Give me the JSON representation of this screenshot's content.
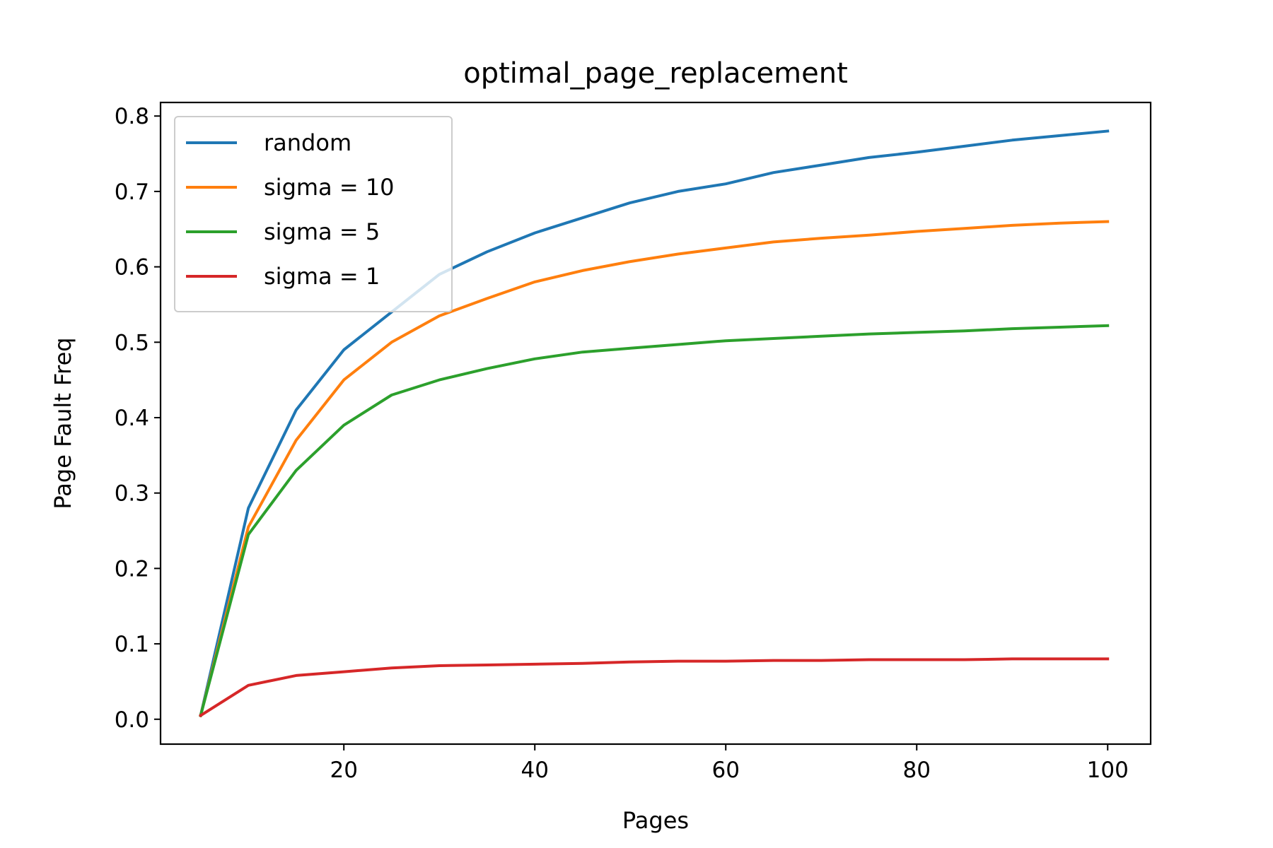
{
  "chart_data": {
    "type": "line",
    "title": "optimal_page_replacement",
    "xlabel": "Pages",
    "ylabel": "Page Fault Freq",
    "xlim": [
      0.8,
      104.5
    ],
    "ylim": [
      -0.033,
      0.818
    ],
    "xticks": [
      20,
      40,
      60,
      80,
      100
    ],
    "yticks": [
      0.0,
      0.1,
      0.2,
      0.3,
      0.4,
      0.5,
      0.6,
      0.7,
      0.8
    ],
    "legend_position": "top-left",
    "grid": false,
    "x": [
      5,
      10,
      15,
      20,
      25,
      30,
      35,
      40,
      45,
      50,
      55,
      60,
      65,
      70,
      75,
      80,
      85,
      90,
      95,
      100
    ],
    "series": [
      {
        "name": "random",
        "color": "#1f77b4",
        "values": [
          0.005,
          0.28,
          0.41,
          0.49,
          0.54,
          0.59,
          0.62,
          0.645,
          0.665,
          0.685,
          0.7,
          0.71,
          0.725,
          0.735,
          0.745,
          0.752,
          0.76,
          0.768,
          0.774,
          0.78
        ]
      },
      {
        "name": "sigma = 10",
        "color": "#ff7f0e",
        "values": [
          0.005,
          0.255,
          0.37,
          0.45,
          0.5,
          0.535,
          0.558,
          0.58,
          0.595,
          0.607,
          0.617,
          0.625,
          0.633,
          0.638,
          0.642,
          0.647,
          0.651,
          0.655,
          0.658,
          0.66
        ]
      },
      {
        "name": "sigma = 5",
        "color": "#2ca02c",
        "values": [
          0.005,
          0.245,
          0.33,
          0.39,
          0.43,
          0.45,
          0.465,
          0.478,
          0.487,
          0.492,
          0.497,
          0.502,
          0.505,
          0.508,
          0.511,
          0.513,
          0.515,
          0.518,
          0.52,
          0.522
        ]
      },
      {
        "name": "sigma = 1",
        "color": "#d62728",
        "values": [
          0.005,
          0.045,
          0.058,
          0.063,
          0.068,
          0.071,
          0.072,
          0.073,
          0.074,
          0.076,
          0.077,
          0.077,
          0.078,
          0.078,
          0.079,
          0.079,
          0.079,
          0.08,
          0.08,
          0.08
        ]
      }
    ]
  }
}
